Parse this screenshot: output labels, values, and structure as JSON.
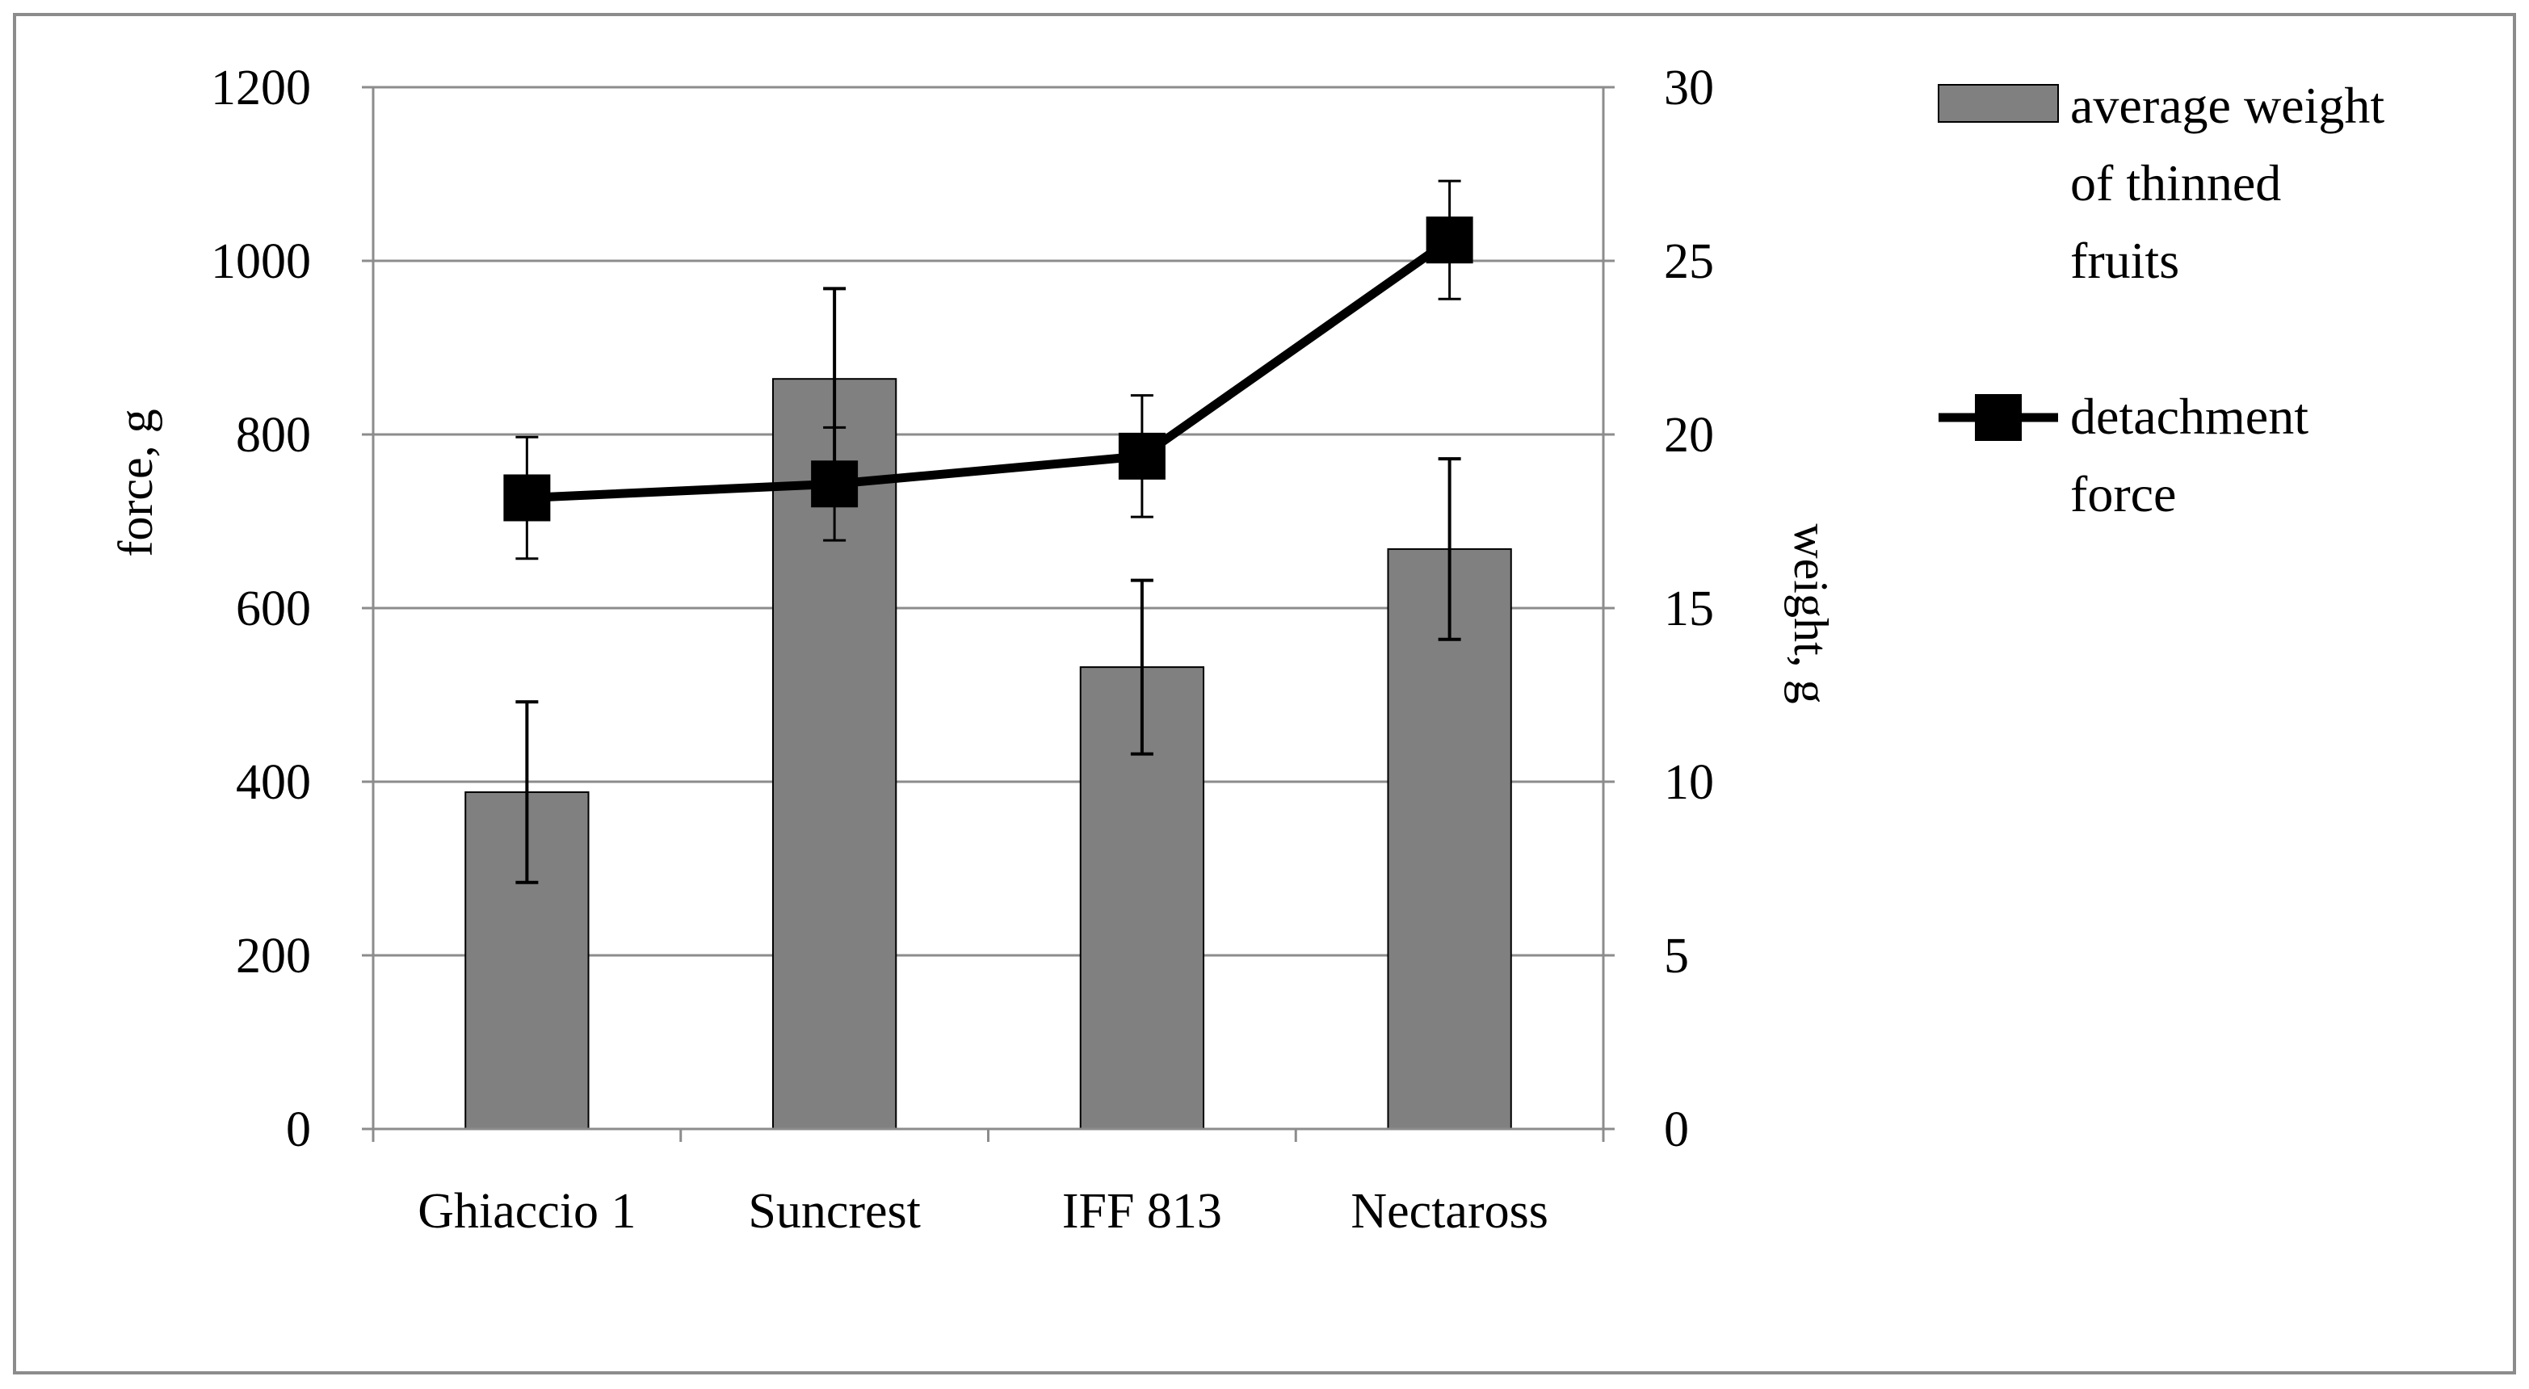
{
  "chart_data": {
    "type": "bar",
    "categories": [
      "Ghiaccio 1",
      "Suncrest",
      "IFF 813",
      "Nectaross"
    ],
    "series": [
      {
        "name": "average weight of thinned fruits",
        "legend_lines": [
          "average weight",
          "of thinned",
          "fruits"
        ],
        "kind": "bar",
        "axis": "right",
        "values": [
          9.7,
          21.6,
          13.3,
          16.7
        ],
        "error": [
          2.6,
          2.6,
          2.5,
          2.6
        ],
        "color": "#808080"
      },
      {
        "name": "detachment force",
        "legend_lines": [
          "detachment",
          "force"
        ],
        "kind": "line",
        "axis": "left",
        "values": [
          727,
          743,
          775,
          1024
        ],
        "error": [
          70,
          65,
          70,
          68
        ],
        "color": "#000000"
      }
    ],
    "y_left": {
      "label": "force, g",
      "lim": [
        0,
        1200
      ],
      "ticks": [
        "0",
        "200",
        "400",
        "600",
        "800",
        "1000",
        "1200"
      ]
    },
    "y_right": {
      "label": "weight, g",
      "lim": [
        0,
        30
      ],
      "ticks": [
        "0",
        "5",
        "10",
        "15",
        "20",
        "25",
        "30"
      ]
    },
    "grid": true,
    "legend_position": "right"
  }
}
